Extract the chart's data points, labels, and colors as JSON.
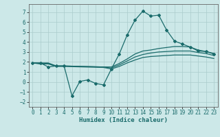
{
  "title": "",
  "xlabel": "Humidex (Indice chaleur)",
  "background_color": "#cce8e8",
  "grid_color": "#aacccc",
  "line_color": "#1a6b6b",
  "xlim": [
    -0.5,
    23.5
  ],
  "ylim": [
    -2.5,
    7.8
  ],
  "yticks": [
    -2,
    -1,
    0,
    1,
    2,
    3,
    4,
    5,
    6,
    7
  ],
  "xticks": [
    0,
    1,
    2,
    3,
    4,
    5,
    6,
    7,
    8,
    9,
    10,
    11,
    12,
    13,
    14,
    15,
    16,
    17,
    18,
    19,
    20,
    21,
    22,
    23
  ],
  "line1_x": [
    0,
    1,
    2,
    3,
    4,
    5,
    6,
    7,
    8,
    9,
    10,
    11,
    12,
    13,
    14,
    15,
    16,
    17,
    18,
    19,
    20,
    21,
    22,
    23
  ],
  "line1_y": [
    1.9,
    1.9,
    1.5,
    1.6,
    1.6,
    -1.4,
    0.05,
    0.2,
    -0.15,
    -0.3,
    1.3,
    2.8,
    4.7,
    6.2,
    7.1,
    6.6,
    6.7,
    5.2,
    4.1,
    3.8,
    3.5,
    3.1,
    3.05,
    2.8
  ],
  "line2_x": [
    0,
    1,
    2,
    3,
    4,
    9,
    10,
    11,
    12,
    13,
    14,
    15,
    16,
    17,
    18,
    19,
    20,
    21,
    22,
    23
  ],
  "line2_y": [
    1.9,
    1.9,
    1.9,
    1.6,
    1.6,
    1.5,
    1.5,
    1.85,
    2.3,
    2.8,
    3.1,
    3.2,
    3.35,
    3.45,
    3.55,
    3.55,
    3.5,
    3.2,
    3.05,
    2.85
  ],
  "line3_x": [
    0,
    1,
    2,
    3,
    4,
    9,
    10,
    11,
    12,
    13,
    14,
    15,
    16,
    17,
    18,
    19,
    20,
    21,
    22,
    23
  ],
  "line3_y": [
    1.9,
    1.85,
    1.85,
    1.6,
    1.6,
    1.5,
    1.4,
    1.7,
    2.1,
    2.5,
    2.75,
    2.9,
    3.0,
    3.05,
    3.1,
    3.1,
    3.1,
    2.95,
    2.85,
    2.65
  ],
  "line4_x": [
    0,
    1,
    2,
    3,
    4,
    9,
    10,
    11,
    12,
    13,
    14,
    15,
    16,
    17,
    18,
    19,
    20,
    21,
    22,
    23
  ],
  "line4_y": [
    1.9,
    1.8,
    1.8,
    1.55,
    1.55,
    1.45,
    1.3,
    1.55,
    1.9,
    2.2,
    2.45,
    2.55,
    2.6,
    2.65,
    2.7,
    2.7,
    2.7,
    2.6,
    2.5,
    2.35
  ]
}
